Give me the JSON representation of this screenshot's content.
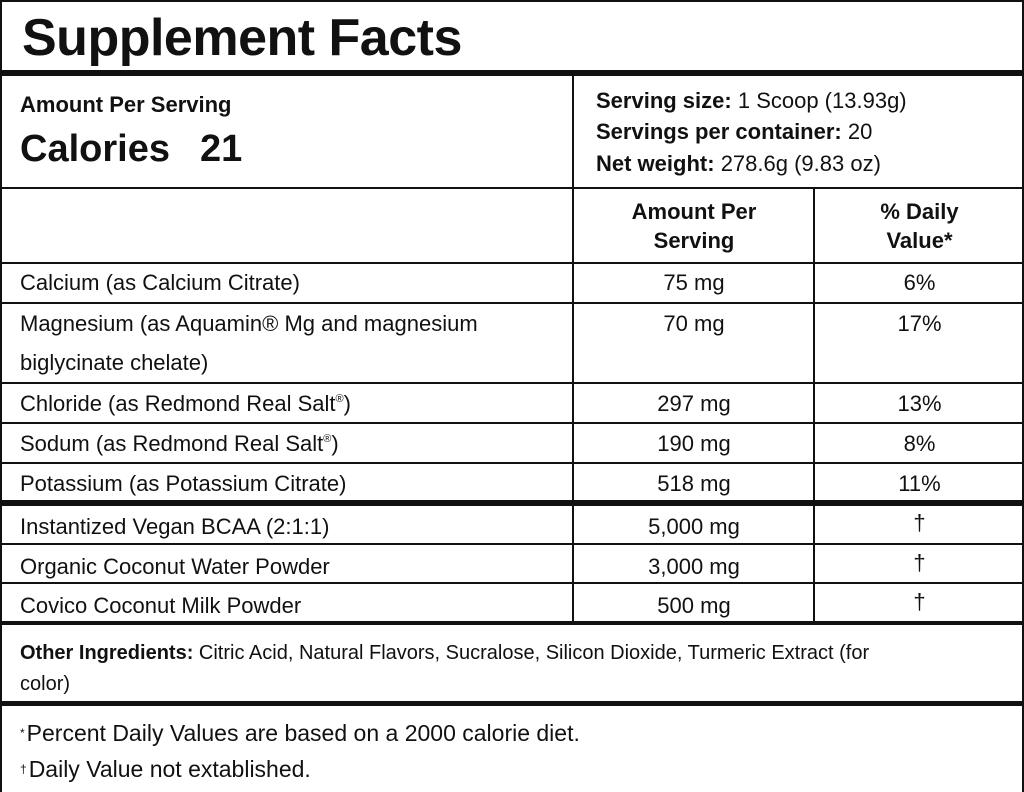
{
  "title": "Supplement Facts",
  "amount_per_serving": "Amount Per Serving",
  "calories": {
    "label": "Calories",
    "value": "21"
  },
  "serving": {
    "size_label": "Serving size:",
    "size_value": "1 Scoop (13.93g)",
    "per_container_label": "Servings per container:",
    "per_container_value": "20",
    "net_weight_label": "Net weight:",
    "net_weight_value": "278.6g (9.83 oz)"
  },
  "columns": {
    "amount_line1": "Amount Per",
    "amount_line2": "Serving",
    "dv_line1": "% Daily",
    "dv_line2": "Value*"
  },
  "nutrients": [
    {
      "name": "Calcium (as Calcium Citrate)",
      "amount": "75 mg",
      "dv": "6%"
    },
    {
      "name_line1": "Magnesium (as Aquamin® Mg and magnesium",
      "name_line2": "biglycinate chelate)",
      "amount": "70 mg",
      "dv": "17%"
    },
    {
      "name": "Chloride (as Redmond Real Salt",
      "reg": "®",
      "name_end": ")",
      "amount": "297 mg",
      "dv": "13%"
    },
    {
      "name": "Sodum (as Redmond Real Salt",
      "reg": "®",
      "name_end": ")",
      "amount": "190 mg",
      "dv": "8%"
    },
    {
      "name": "Potassium (as Potassium Citrate)",
      "amount": "518 mg",
      "dv": "11%"
    }
  ],
  "blend": [
    {
      "name": "Instantized Vegan BCAA (2:1:1)",
      "amount": "5,000 mg",
      "dv": "†"
    },
    {
      "name": "Organic Coconut Water Powder",
      "amount": "3,000 mg",
      "dv": "†"
    },
    {
      "name": "Covico Coconut Milk Powder",
      "amount": "500 mg",
      "dv": "†"
    }
  ],
  "other_ingredients": {
    "label": "Other Ingredients:",
    "text": "Citric Acid, Natural Flavors, Sucralose, Silicon Dioxide, Turmeric Extract (for color)"
  },
  "footnotes": [
    {
      "symbol": "*",
      "text": "Percent Daily Values are based on a 2000 calorie diet."
    },
    {
      "symbol": "†",
      "text": "Daily Value not extablished."
    }
  ]
}
